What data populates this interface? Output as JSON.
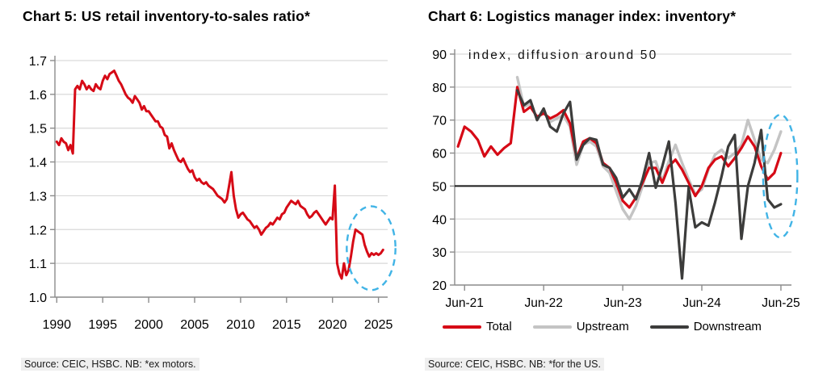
{
  "page": {
    "background": "#ffffff",
    "accent_red": "#d60a16",
    "highlight_blue": "#41b4e6"
  },
  "chart_data": [
    {
      "type": "line",
      "title": "Chart 5: US retail inventory-to-sales ratio*",
      "source": "Source: CEIC, HSBC. NB: *ex motors.",
      "grid": true,
      "legend_position": "none",
      "ylim": [
        1.0,
        1.7
      ],
      "ytick_labels": [
        "1.0",
        "1.1",
        "1.2",
        "1.3",
        "1.4",
        "1.5",
        "1.6",
        "1.7"
      ],
      "yticks": [
        1.0,
        1.1,
        1.2,
        1.3,
        1.4,
        1.5,
        1.6,
        1.7
      ],
      "xlim": [
        1989.8,
        2026.0
      ],
      "xticks": [
        1990,
        1995,
        2000,
        2005,
        2010,
        2015,
        2020,
        2025
      ],
      "xtick_labels": [
        "1990",
        "1995",
        "2000",
        "2005",
        "2010",
        "2015",
        "2020",
        "2025"
      ],
      "highlight_ellipse": {
        "cx": 2024.2,
        "cy": 1.145,
        "rx_x": 2.65,
        "ry_y": 0.124,
        "color": "#41b4e6"
      },
      "series": [
        {
          "name": "US retail inventory-to-sales ratio ex motors",
          "color": "#d60a16",
          "width": 3,
          "x_start": 1990.0,
          "x_step": 0.25,
          "values": [
            1.46,
            1.45,
            1.47,
            1.46,
            1.455,
            1.435,
            1.45,
            1.425,
            1.615,
            1.625,
            1.615,
            1.64,
            1.63,
            1.615,
            1.625,
            1.615,
            1.61,
            1.63,
            1.62,
            1.615,
            1.64,
            1.655,
            1.645,
            1.66,
            1.665,
            1.67,
            1.655,
            1.64,
            1.63,
            1.615,
            1.6,
            1.59,
            1.585,
            1.575,
            1.595,
            1.585,
            1.575,
            1.555,
            1.565,
            1.55,
            1.55,
            1.54,
            1.53,
            1.52,
            1.52,
            1.505,
            1.5,
            1.48,
            1.475,
            1.44,
            1.455,
            1.435,
            1.42,
            1.405,
            1.4,
            1.41,
            1.395,
            1.38,
            1.37,
            1.375,
            1.355,
            1.345,
            1.35,
            1.34,
            1.335,
            1.34,
            1.33,
            1.325,
            1.32,
            1.31,
            1.3,
            1.295,
            1.29,
            1.28,
            1.29,
            1.33,
            1.37,
            1.3,
            1.26,
            1.235,
            1.245,
            1.25,
            1.24,
            1.23,
            1.225,
            1.215,
            1.205,
            1.21,
            1.2,
            1.185,
            1.195,
            1.205,
            1.21,
            1.22,
            1.215,
            1.225,
            1.235,
            1.23,
            1.245,
            1.25,
            1.265,
            1.275,
            1.285,
            1.28,
            1.275,
            1.285,
            1.27,
            1.265,
            1.26,
            1.245,
            1.235,
            1.24,
            1.25,
            1.255,
            1.245,
            1.235,
            1.225,
            1.215,
            1.225,
            1.235,
            1.23,
            1.33,
            1.1,
            1.07,
            1.055,
            1.1,
            1.065,
            1.08,
            1.12,
            1.165,
            1.2,
            1.195,
            1.19,
            1.185,
            1.155,
            1.135,
            1.12,
            1.13,
            1.125,
            1.13,
            1.125,
            1.13,
            1.14
          ]
        }
      ]
    },
    {
      "type": "line",
      "title": "Chart 6: Logistics manager index: inventory*",
      "annotation": "index, diffusion around 50",
      "source": "Source: CEIC, HSBC. NB: *for the US.",
      "grid": true,
      "legend_position": "bottom",
      "ylim": [
        20,
        90
      ],
      "yticks": [
        20,
        30,
        40,
        50,
        60,
        70,
        80,
        90
      ],
      "ytick_labels": [
        "20",
        "30",
        "40",
        "50",
        "60",
        "70",
        "80",
        "90"
      ],
      "refline": 50,
      "x_unit": "months_since_jun21",
      "xlim": [
        -1.5,
        49.6
      ],
      "xticks": [
        0,
        12,
        24,
        36,
        48
      ],
      "xtick_labels": [
        "Jun-21",
        "Jun-22",
        "Jun-23",
        "Jun-24",
        "Jun-25"
      ],
      "highlight_ellipse": {
        "cx": 47.9,
        "cy": 53.0,
        "rx_x": 2.6,
        "ry_y": 18.6,
        "color": "#41b4e6"
      },
      "series": [
        {
          "name": "Upstream",
          "color": "#c4c4c4",
          "width": 3.4,
          "x_start": 8,
          "x_step": 1,
          "values": [
            83,
            74,
            75,
            70.5,
            72.5,
            69.5,
            70.5,
            71.5,
            68,
            56.5,
            62.5,
            63.5,
            62,
            56,
            54,
            48.5,
            43,
            40,
            44,
            50,
            57,
            57.5,
            51.5,
            57.5,
            62.5,
            57,
            52,
            47.5,
            49,
            55,
            59.5,
            61,
            58.5,
            60,
            62.5,
            70,
            64,
            58,
            57,
            61,
            66.5
          ]
        },
        {
          "name": "Total",
          "color": "#d60a16",
          "width": 3.2,
          "x_start": -1,
          "x_step": 1,
          "values": [
            62,
            68,
            66.5,
            64,
            59,
            62,
            59.5,
            61.5,
            63,
            80,
            72.5,
            74,
            71,
            72,
            70.5,
            71.5,
            73,
            69,
            58.5,
            63.5,
            64.5,
            63,
            57,
            55.5,
            51,
            45.5,
            43.5,
            46.5,
            51,
            55.5,
            55.5,
            51,
            56,
            58,
            55,
            51,
            47,
            50,
            55.5,
            58,
            59,
            56,
            58.5,
            61.5,
            65,
            62,
            56,
            52,
            54,
            60
          ]
        },
        {
          "name": "Downstream",
          "color": "#3c3c3b",
          "width": 3.2,
          "x_start": 8,
          "x_step": 1,
          "values": [
            79,
            74.5,
            76,
            70,
            73.5,
            68,
            66.5,
            72,
            75.5,
            58,
            62.5,
            64.5,
            64,
            56.5,
            55.5,
            52.5,
            46.5,
            49,
            46,
            52,
            60,
            49.5,
            56,
            63.5,
            45,
            22,
            49.5,
            37.5,
            39,
            38,
            45,
            53,
            62,
            65.5,
            34,
            50,
            57,
            67,
            46,
            43.5,
            44.5
          ]
        }
      ],
      "legend_order": [
        "Total",
        "Upstream",
        "Downstream"
      ]
    }
  ]
}
